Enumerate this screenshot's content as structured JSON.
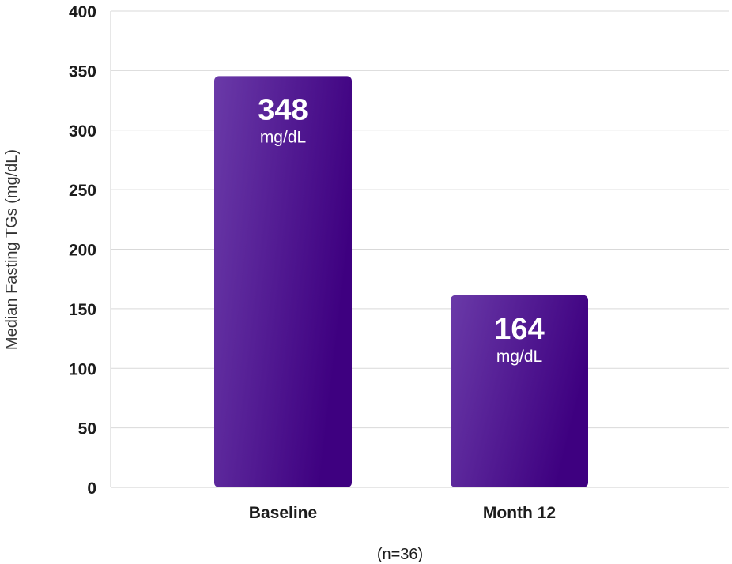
{
  "chart_data": {
    "type": "bar",
    "categories": [
      "Baseline",
      "Month 12"
    ],
    "values": [
      348,
      164
    ],
    "data_labels": [
      {
        "value": "348",
        "unit": "mg/dL"
      },
      {
        "value": "164",
        "unit": "mg/dL"
      }
    ],
    "title": "",
    "xlabel": "(n=36)",
    "ylabel": "Median Fasting TGs (mg/dL)",
    "ylim": [
      0,
      400
    ],
    "yticks": [
      "0",
      "50",
      "100",
      "150",
      "200",
      "250",
      "300",
      "350",
      "400"
    ],
    "grid": true,
    "legend": "none"
  },
  "colors": {
    "bar_start": "#6a3aa8",
    "bar_end": "#3e0080",
    "grid": "#d9d9d9",
    "axis": "#cfcfcf",
    "text": "#1c1c1c"
  }
}
